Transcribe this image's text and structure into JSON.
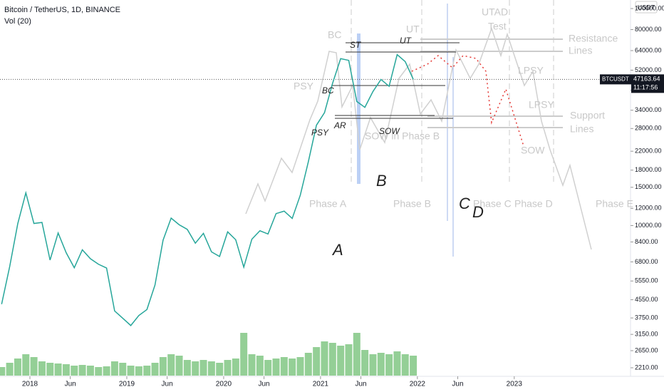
{
  "chart_data": {
    "type": "line",
    "title": "Bitcoin / TetherUS, 1D, BINANCE",
    "subtitle": "Vol (20)",
    "currency": "USDT",
    "symbol": "BTCUSDT",
    "last_price": {
      "value": 47163.64,
      "label": "47163.64"
    },
    "countdown": "11:17:56",
    "log_scale": true,
    "color": "#26a69a",
    "x": [
      "2017-09",
      "2017-10",
      "2017-11",
      "2017-12",
      "2018-01",
      "2018-02",
      "2018-03",
      "2018-04",
      "2018-05",
      "2018-06",
      "2018-07",
      "2018-08",
      "2018-09",
      "2018-10",
      "2018-11",
      "2018-12",
      "2019-01",
      "2019-02",
      "2019-03",
      "2019-04",
      "2019-05",
      "2019-06",
      "2019-07",
      "2019-08",
      "2019-09",
      "2019-10",
      "2019-11",
      "2019-12",
      "2020-01",
      "2020-02",
      "2020-03",
      "2020-04",
      "2020-05",
      "2020-06",
      "2020-07",
      "2020-08",
      "2020-09",
      "2020-10",
      "2020-11",
      "2020-12",
      "2021-01",
      "2021-02",
      "2021-03",
      "2021-04",
      "2021-05",
      "2021-06",
      "2021-07",
      "2021-08",
      "2021-09",
      "2021-10",
      "2021-11",
      "2021-12"
    ],
    "values": [
      4340,
      6470,
      10200,
      14150,
      10220,
      10330,
      6930,
      9240,
      7490,
      6390,
      7730,
      7030,
      6630,
      6370,
      4040,
      3740,
      3460,
      3850,
      4100,
      5320,
      8560,
      10820,
      10080,
      9600,
      8290,
      9200,
      7560,
      7200,
      9350,
      8600,
      6430,
      8650,
      9460,
      9140,
      11350,
      11650,
      10780,
      13800,
      19700,
      28990,
      33140,
      45240,
      58800,
      57700,
      37300,
      35040,
      41460,
      47130,
      43820,
      61320,
      56950,
      47163.64
    ],
    "volume": {
      "color": "#4caf50",
      "values": [
        12,
        18,
        24,
        30,
        26,
        20,
        18,
        17,
        16,
        14,
        15,
        14,
        12,
        13,
        20,
        18,
        14,
        13,
        14,
        18,
        26,
        30,
        28,
        22,
        20,
        22,
        20,
        18,
        22,
        24,
        60,
        30,
        28,
        22,
        24,
        26,
        24,
        26,
        32,
        40,
        48,
        46,
        42,
        44,
        60,
        36,
        30,
        32,
        30,
        34,
        30,
        28
      ]
    },
    "xticks": [
      {
        "value": "2018-01",
        "label": "2018"
      },
      {
        "value": "2018-06",
        "label": "Jun"
      },
      {
        "value": "2019-01",
        "label": "2019"
      },
      {
        "value": "2019-06",
        "label": "Jun"
      },
      {
        "value": "2020-01",
        "label": "2020"
      },
      {
        "value": "2020-06",
        "label": "Jun"
      },
      {
        "value": "2021-01",
        "label": "2021"
      },
      {
        "value": "2021-06",
        "label": "Jun"
      },
      {
        "value": "2022-01",
        "label": "2022"
      },
      {
        "value": "2022-06",
        "label": "Jun"
      },
      {
        "value": "2023-01",
        "label": "2023"
      }
    ],
    "ylim": [
      2210,
      100000
    ],
    "yticks": [
      {
        "value": 2210,
        "label": "2210.00"
      },
      {
        "value": 2650,
        "label": "2650.00"
      },
      {
        "value": 3150,
        "label": "3150.00"
      },
      {
        "value": 3750,
        "label": "3750.00"
      },
      {
        "value": 4550,
        "label": "4550.00"
      },
      {
        "value": 5550,
        "label": "5550.00"
      },
      {
        "value": 6800,
        "label": "6800.00"
      },
      {
        "value": 8400,
        "label": "8400.00"
      },
      {
        "value": 10000,
        "label": "10000.00"
      },
      {
        "value": 12000,
        "label": "12000.00"
      },
      {
        "value": 15000,
        "label": "15000.00"
      },
      {
        "value": 18000,
        "label": "18000.00"
      },
      {
        "value": 22000,
        "label": "22000.00"
      },
      {
        "value": 28000,
        "label": "28000.00"
      },
      {
        "value": 34000,
        "label": "34000.00"
      },
      {
        "value": 42000,
        "label": "42000.00"
      },
      {
        "value": 52000,
        "label": "52000.00"
      },
      {
        "value": 64000,
        "label": "64000.00"
      },
      {
        "value": 80000,
        "label": "80000.00"
      },
      {
        "value": 100000,
        "label": "100000.00"
      }
    ],
    "annotations": [
      "BC",
      "PSY",
      "Phase A",
      "SOW in Phase B",
      "Phase B",
      "UT",
      "UTAD",
      "Test",
      "Resistance",
      "Lines",
      "LPSY",
      "LPSY",
      "Support",
      "Lines",
      "SOW",
      "Phase C",
      "Phase D",
      "Phase E",
      "ST",
      "UT",
      "BC",
      "AR",
      "PSY",
      "SOW",
      "B",
      "A",
      "C",
      "D"
    ]
  }
}
